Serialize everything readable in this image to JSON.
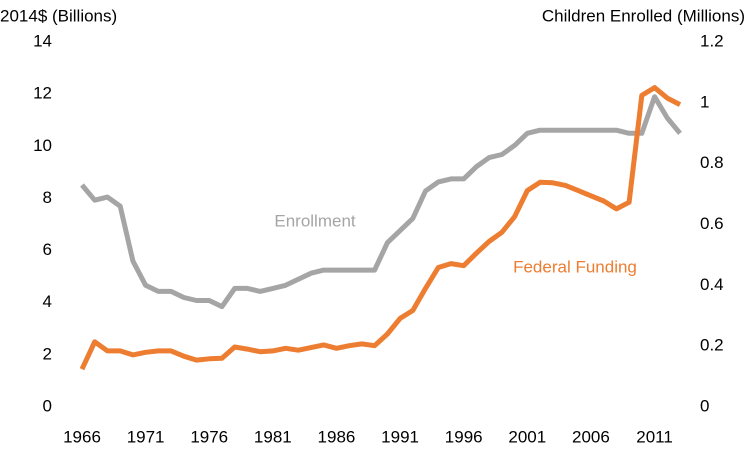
{
  "chart_data": {
    "type": "line",
    "y_label": "2014$ (Billions)",
    "y2_label": "Children Enrolled (Millions)",
    "x": [
      1966,
      1967,
      1968,
      1969,
      1970,
      1971,
      1972,
      1973,
      1974,
      1975,
      1976,
      1977,
      1978,
      1979,
      1980,
      1981,
      1982,
      1983,
      1984,
      1985,
      1986,
      1987,
      1988,
      1989,
      1990,
      1991,
      1992,
      1993,
      1994,
      1995,
      1996,
      1997,
      1998,
      1999,
      2000,
      2001,
      2002,
      2003,
      2004,
      2005,
      2006,
      2007,
      2008,
      2009,
      2010,
      2011,
      2012,
      2013
    ],
    "xlim": [
      1966,
      2013
    ],
    "xticks": [
      1966,
      1971,
      1976,
      1981,
      1986,
      1991,
      1996,
      2001,
      2006,
      2011
    ],
    "ylim": [
      0,
      14
    ],
    "yticks": [
      0,
      2,
      4,
      6,
      8,
      10,
      12,
      14
    ],
    "y2lim": [
      0,
      1.2
    ],
    "y2ticks": [
      0,
      0.2,
      0.4,
      0.6,
      0.8,
      1,
      1.2
    ],
    "grid": false,
    "series": [
      {
        "name": "Enrollment",
        "color": "#a5a5a5",
        "axis": "y2",
        "values": [
          0.73,
          0.68,
          0.69,
          0.66,
          0.48,
          0.4,
          0.38,
          0.38,
          0.36,
          0.35,
          0.35,
          0.33,
          0.39,
          0.39,
          0.38,
          0.39,
          0.4,
          0.42,
          0.44,
          0.45,
          0.45,
          0.45,
          0.45,
          0.45,
          0.54,
          0.58,
          0.62,
          0.71,
          0.74,
          0.75,
          0.75,
          0.79,
          0.82,
          0.83,
          0.86,
          0.9,
          0.91,
          0.91,
          0.91,
          0.91,
          0.91,
          0.91,
          0.91,
          0.9,
          0.9,
          1.02,
          0.95,
          0.9
        ]
      },
      {
        "name": "Federal Funding",
        "color": "#ed7d31",
        "values": [
          1.45,
          2.5,
          2.15,
          2.15,
          2.0,
          2.1,
          2.15,
          2.15,
          1.95,
          1.8,
          1.85,
          1.87,
          2.3,
          2.22,
          2.12,
          2.15,
          2.25,
          2.18,
          2.28,
          2.38,
          2.25,
          2.35,
          2.42,
          2.35,
          2.8,
          3.4,
          3.7,
          4.55,
          5.35,
          5.5,
          5.42,
          5.9,
          6.35,
          6.7,
          7.3,
          8.3,
          8.62,
          8.6,
          8.5,
          8.3,
          8.1,
          7.9,
          7.6,
          7.85,
          11.95,
          12.25,
          11.85,
          11.6
        ]
      }
    ]
  }
}
